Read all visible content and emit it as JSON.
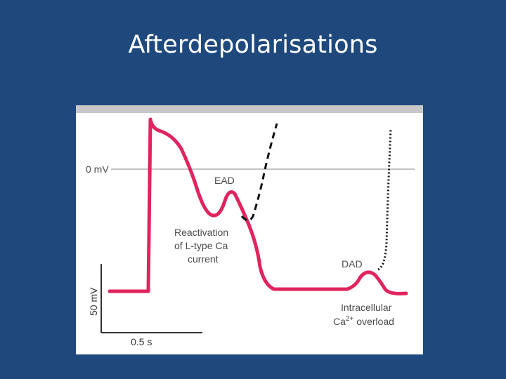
{
  "slide": {
    "title": "Afterdepolarisations"
  },
  "figure": {
    "zero_label": "0 mV",
    "ead_label": "EAD",
    "ead_caption": [
      "Reactivation",
      "of L-type Ca",
      "current"
    ],
    "dad_label": "DAD",
    "dad_caption_line1": "Intracellular",
    "dad_caption_ca": "Ca",
    "dad_caption_sup": "2+",
    "dad_caption_rest": " overload",
    "scale_y_label": "50 mV",
    "scale_x_label": "0.5 s",
    "colors": {
      "trace": "#e0245e",
      "dashed_trace": "#111111",
      "zero_line": "#888888",
      "scale_bar": "#333333"
    }
  }
}
